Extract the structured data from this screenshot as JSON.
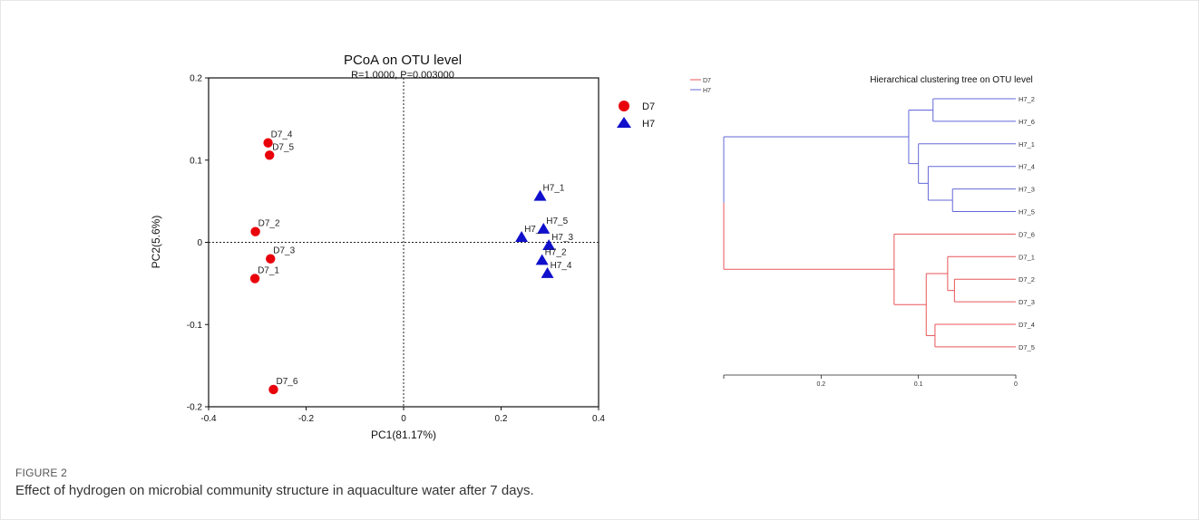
{
  "figure": {
    "label": "FIGURE 2",
    "caption": "Effect of hydrogen on microbial community structure in aquaculture water after 7 days."
  },
  "chart_data": [
    {
      "type": "scatter",
      "title": "PCoA on OTU level",
      "subtitle": "R=1.0000, P=0.003000",
      "xlabel": "PC1(81.17%)",
      "ylabel": "PC2(5.6%)",
      "xlim": [
        -0.4,
        0.4
      ],
      "ylim": [
        -0.2,
        0.2
      ],
      "xticks": [
        -0.4,
        -0.2,
        0,
        0.2,
        0.4
      ],
      "xtick_labels": [
        "-0.4",
        "-0.2",
        "0",
        "0.2",
        "0.4"
      ],
      "yticks": [
        -0.2,
        -0.1,
        0,
        0.1,
        0.2
      ],
      "ytick_labels": [
        "-0.2",
        "-0.1",
        "0",
        "0.1",
        "0.2"
      ],
      "reference_lines": [
        "x=0",
        "y=0"
      ],
      "grid": false,
      "legend_position": "right",
      "series": [
        {
          "name": "D7",
          "marker": "circle",
          "color": "#e8000b",
          "points": [
            {
              "label": "D7_4",
              "x": -0.278,
              "y": 0.121
            },
            {
              "label": "D7_5",
              "x": -0.275,
              "y": 0.106
            },
            {
              "label": "D7_2",
              "x": -0.304,
              "y": 0.013
            },
            {
              "label": "D7_3",
              "x": -0.273,
              "y": -0.02
            },
            {
              "label": "D7_1",
              "x": -0.305,
              "y": -0.044
            },
            {
              "label": "D7_6",
              "x": -0.267,
              "y": -0.179
            }
          ]
        },
        {
          "name": "H7",
          "marker": "triangle",
          "color": "#1010cc",
          "points": [
            {
              "label": "H7_1",
              "x": 0.28,
              "y": 0.056
            },
            {
              "label": "H7_5",
              "x": 0.287,
              "y": 0.016
            },
            {
              "label": "H7_",
              "x": 0.242,
              "y": 0.006
            },
            {
              "label": "H7_3",
              "x": 0.298,
              "y": -0.004
            },
            {
              "label": "H7_2",
              "x": 0.284,
              "y": -0.022
            },
            {
              "label": "H7_4",
              "x": 0.295,
              "y": -0.038
            }
          ]
        }
      ]
    },
    {
      "type": "dendrogram",
      "title": "Hierarchical clustering tree on OTU level",
      "xlim": [
        0.3,
        0
      ],
      "xticks": [
        0.2,
        0.1,
        0
      ],
      "xtick_labels": [
        "0.2",
        "0.1",
        "0"
      ],
      "legend": [
        {
          "name": "D7",
          "color": "#e8565a"
        },
        {
          "name": "H7",
          "color": "#6468d8"
        }
      ],
      "leaves": [
        "H7_2",
        "H7_6",
        "H7_1",
        "H7_4",
        "H7_3",
        "H7_5",
        "D7_6",
        "D7_1",
        "D7_2",
        "D7_3",
        "D7_4",
        "D7_5"
      ],
      "merges": [
        {
          "a": "H7_2",
          "b": "H7_6",
          "height": 0.085,
          "group": "H7"
        },
        {
          "a": "H7_3",
          "b": "H7_5",
          "height": 0.065,
          "group": "H7"
        },
        {
          "a": "H7_4",
          "b": "[H7_3,H7_5]",
          "height": 0.09,
          "group": "H7"
        },
        {
          "a": "H7_1",
          "b": "[H7_4,H7_3,H7_5]",
          "height": 0.1,
          "group": "H7"
        },
        {
          "a": "[H7_2,H7_6]",
          "b": "[H7_1,H7_4,H7_3,H7_5]",
          "height": 0.11,
          "group": "H7"
        },
        {
          "a": "D7_2",
          "b": "D7_3",
          "height": 0.063,
          "group": "D7"
        },
        {
          "a": "D7_1",
          "b": "[D7_2,D7_3]",
          "height": 0.07,
          "group": "D7"
        },
        {
          "a": "D7_4",
          "b": "D7_5",
          "height": 0.083,
          "group": "D7"
        },
        {
          "a": "[D7_1,D7_2,D7_3]",
          "b": "[D7_4,D7_5]",
          "height": 0.092,
          "group": "D7"
        },
        {
          "a": "D7_6",
          "b": "[D7_1,D7_2,D7_3,D7_4,D7_5]",
          "height": 0.125,
          "group": "D7"
        },
        {
          "a": "[H7]",
          "b": "[D7]",
          "height": 0.3,
          "group": "root"
        }
      ],
      "branch_colors": {
        "H7": "#6468d8",
        "D7": "#e8565a",
        "root": "#6468d8|#e8565a"
      }
    }
  ]
}
